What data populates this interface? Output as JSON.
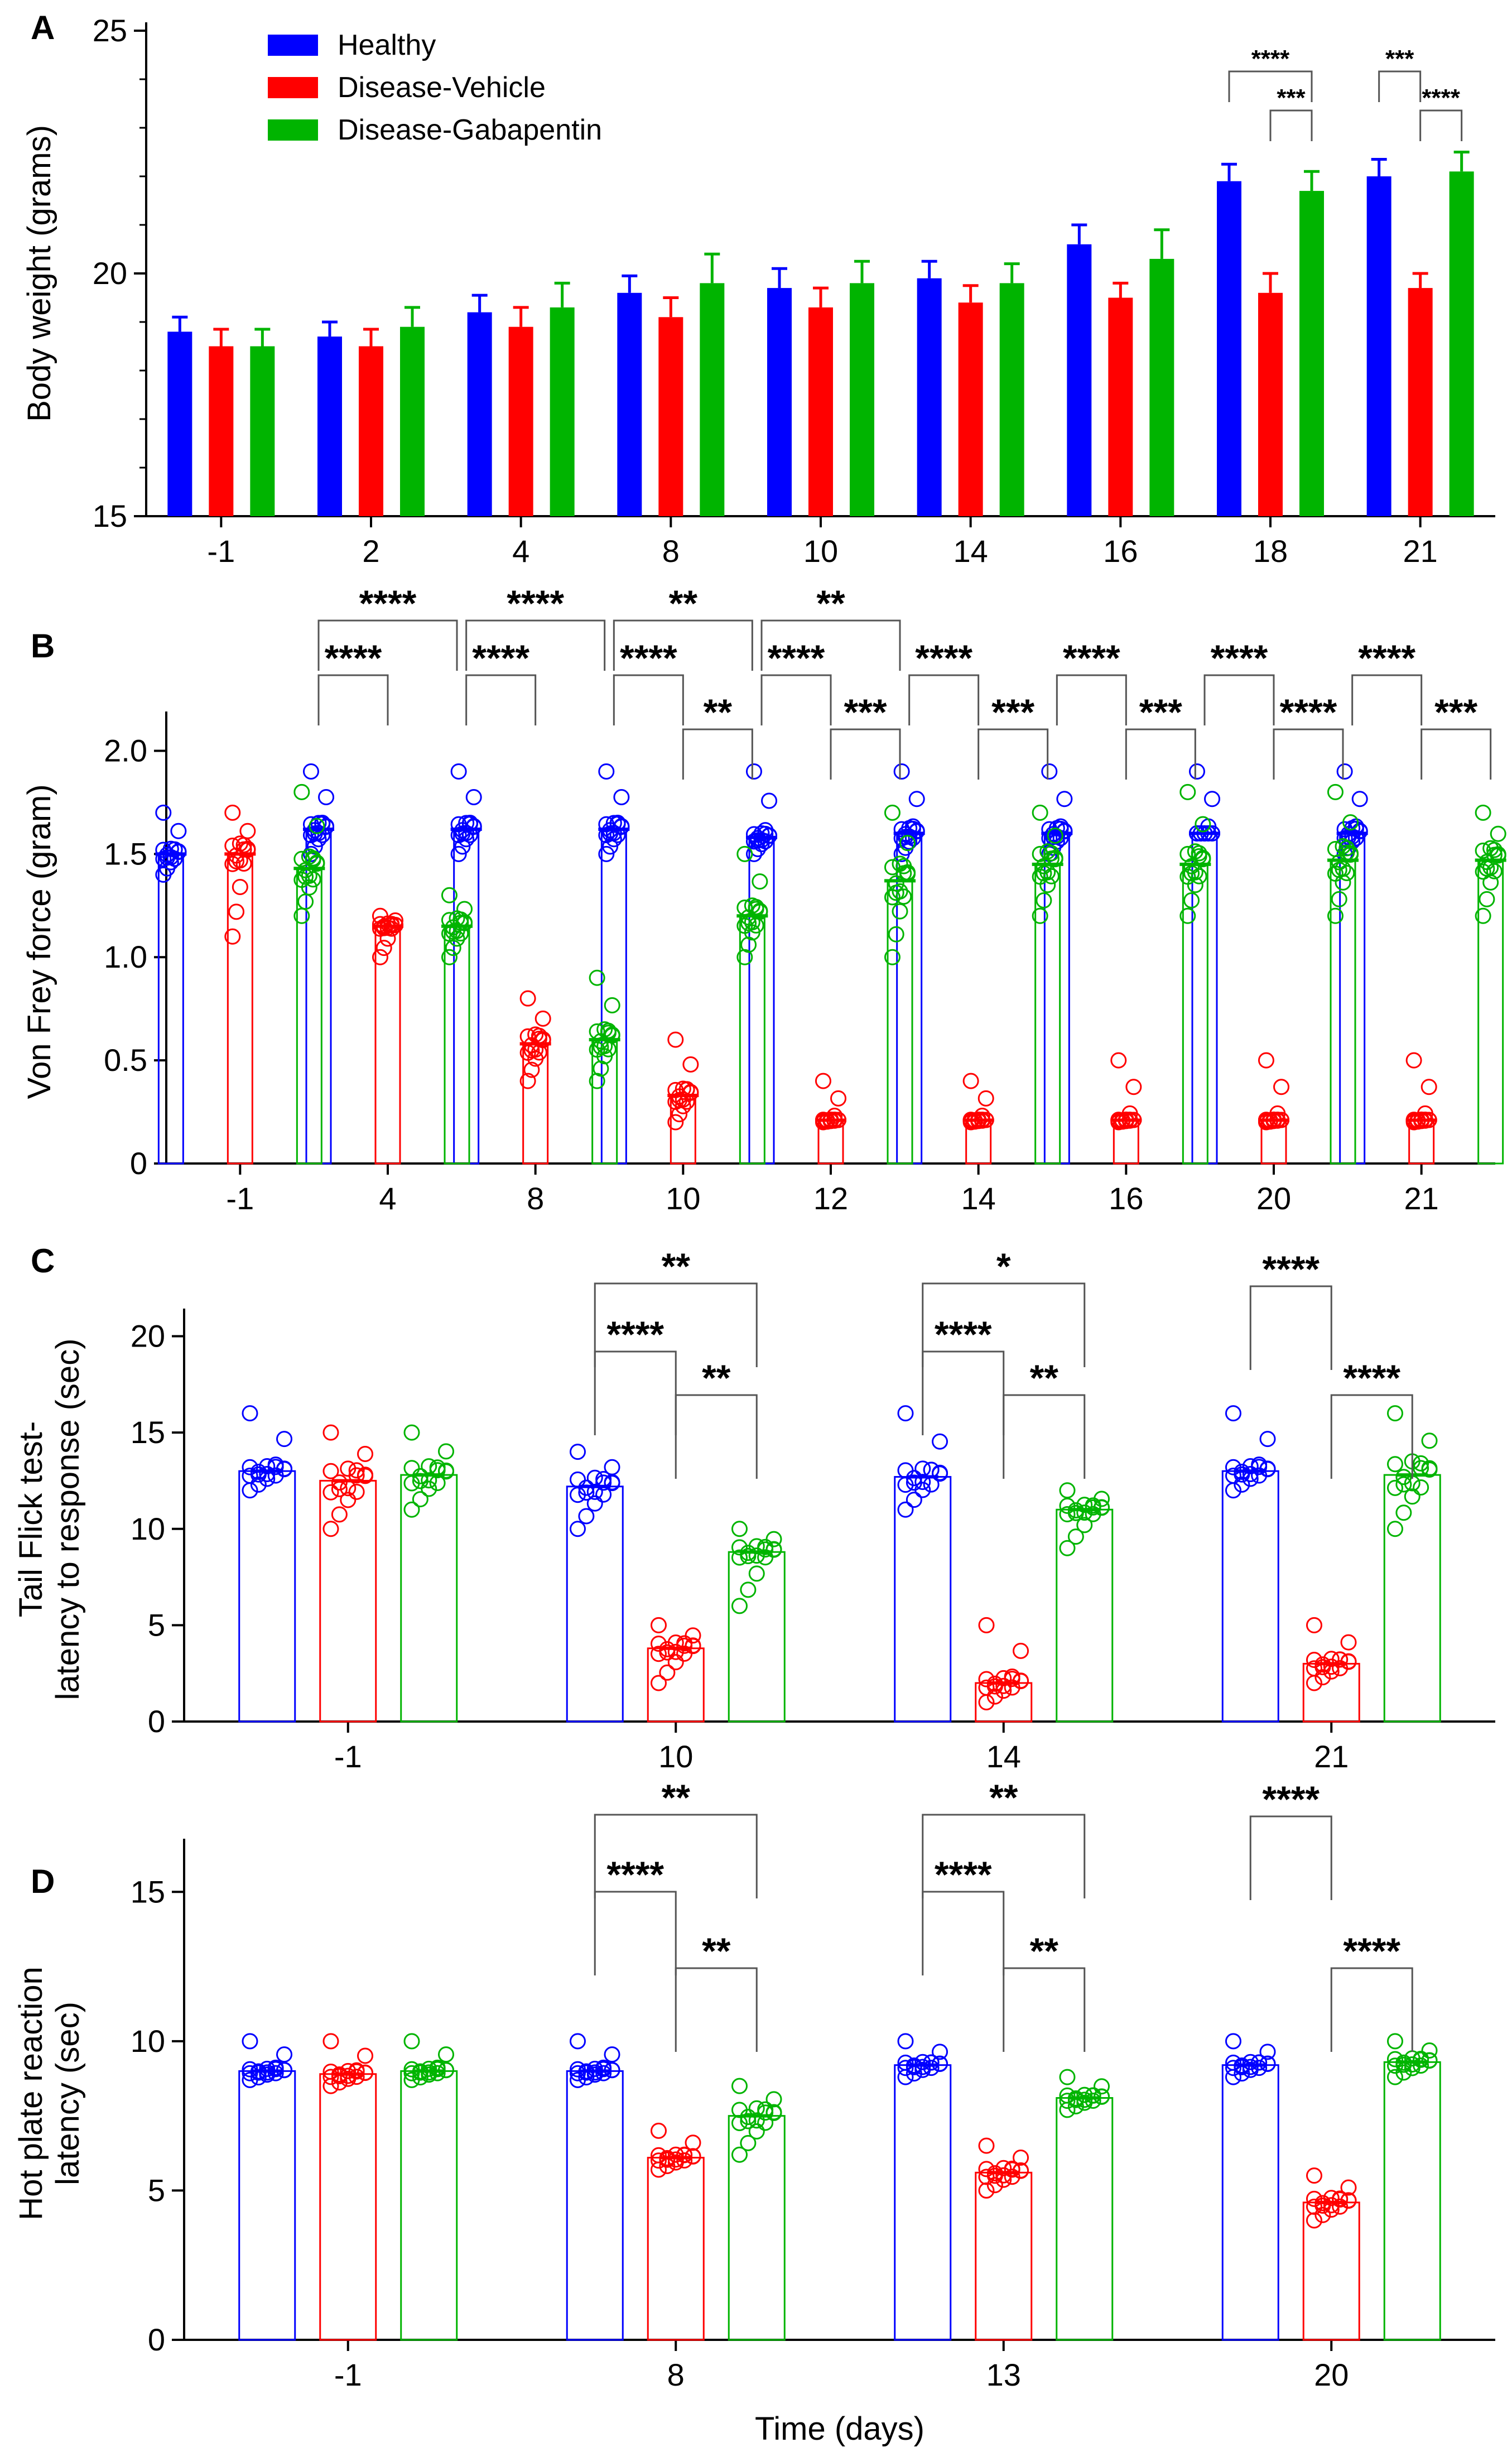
{
  "colors": {
    "healthy": "#0000ff",
    "vehicle": "#ff0000",
    "gabapentin": "#00b400",
    "axis": "#000000"
  },
  "legend": [
    "Healthy",
    "Disease-Vehicle",
    "Disease-Gabapentin"
  ],
  "xlabel": "Time (days)",
  "chart_data": [
    {
      "panel": "A",
      "type": "bar",
      "ylabel": "Body weight (grams)",
      "ylim": [
        15,
        25
      ],
      "yticks": [
        15,
        20,
        25
      ],
      "categories": [
        "-1",
        "2",
        "4",
        "8",
        "10",
        "14",
        "16",
        "18",
        "21"
      ],
      "series": [
        {
          "name": "Healthy",
          "values": [
            18.8,
            18.7,
            19.2,
            19.6,
            19.7,
            19.9,
            20.6,
            21.9,
            22.0
          ],
          "errors": [
            0.3,
            0.3,
            0.35,
            0.35,
            0.4,
            0.35,
            0.4,
            0.35,
            0.35
          ]
        },
        {
          "name": "Disease-Vehicle",
          "values": [
            18.5,
            18.5,
            18.9,
            19.1,
            19.3,
            19.4,
            19.5,
            19.6,
            19.7
          ],
          "errors": [
            0.35,
            0.35,
            0.4,
            0.4,
            0.4,
            0.35,
            0.3,
            0.4,
            0.3
          ]
        },
        {
          "name": "Disease-Gabapentin",
          "values": [
            18.5,
            18.9,
            19.3,
            19.8,
            19.8,
            19.8,
            20.3,
            21.7,
            22.1
          ],
          "errors": [
            0.35,
            0.4,
            0.5,
            0.6,
            0.45,
            0.4,
            0.6,
            0.4,
            0.4
          ]
        }
      ],
      "significance": [
        {
          "cat": 7,
          "from": 0,
          "to": 2,
          "label": "****",
          "level": 2
        },
        {
          "cat": 7,
          "from": 1,
          "to": 2,
          "label": "***",
          "level": 1
        },
        {
          "cat": 8,
          "from": 0,
          "to": 1,
          "label": "***",
          "level": 2
        },
        {
          "cat": 8,
          "from": 1,
          "to": 2,
          "label": "****",
          "level": 1
        }
      ]
    },
    {
      "panel": "B",
      "type": "bar",
      "ylabel": "Von Frey force (gram)",
      "ylim": [
        0,
        2.15
      ],
      "yticks": [
        0,
        0.5,
        1.0,
        1.5,
        2.0
      ],
      "yticklabels": [
        "0",
        "0.5",
        "1.0",
        "1.5",
        "2.0"
      ],
      "categories": [
        "-1",
        "4",
        "8",
        "10",
        "12",
        "14",
        "16",
        "20",
        "21"
      ],
      "series": [
        {
          "name": "Healthy",
          "values": [
            1.5,
            1.62,
            1.62,
            1.62,
            1.58,
            1.6,
            1.6,
            1.6,
            1.6
          ],
          "min": [
            1.4,
            1.5,
            1.5,
            1.5,
            1.5,
            1.5,
            1.5,
            1.6,
            1.5
          ],
          "max": [
            1.7,
            1.9,
            1.9,
            1.9,
            1.9,
            1.9,
            1.9,
            1.9,
            1.9
          ]
        },
        {
          "name": "Disease-Vehicle",
          "values": [
            1.5,
            1.15,
            0.58,
            0.33,
            0.21,
            0.21,
            0.21,
            0.21,
            0.21
          ],
          "min": [
            1.1,
            1.0,
            0.4,
            0.2,
            0.2,
            0.2,
            0.2,
            0.2,
            0.2
          ],
          "max": [
            1.7,
            1.2,
            0.8,
            0.6,
            0.4,
            0.4,
            0.5,
            0.5,
            0.5
          ]
        },
        {
          "name": "Disease-Gabapentin",
          "values": [
            1.43,
            1.15,
            0.6,
            1.2,
            1.37,
            1.45,
            1.45,
            1.47,
            1.47
          ],
          "min": [
            1.2,
            1.0,
            0.4,
            1.0,
            1.0,
            1.2,
            1.2,
            1.2,
            1.2
          ],
          "max": [
            1.8,
            1.3,
            0.9,
            1.5,
            1.7,
            1.7,
            1.8,
            1.8,
            1.7
          ]
        }
      ],
      "significance": [
        {
          "cat": 1,
          "from": 0,
          "to": 2,
          "label": "****",
          "level": 2
        },
        {
          "cat": 1,
          "from": 0,
          "to": 1,
          "label": "****",
          "level": 1
        },
        {
          "cat": 2,
          "from": 0,
          "to": 2,
          "label": "****",
          "level": 2
        },
        {
          "cat": 2,
          "from": 0,
          "to": 1,
          "label": "****",
          "level": 1
        },
        {
          "cat": 3,
          "from": 0,
          "to": 2,
          "label": "**",
          "level": 2
        },
        {
          "cat": 3,
          "from": 0,
          "to": 1,
          "label": "****",
          "level": 1
        },
        {
          "cat": 3,
          "from": 1,
          "to": 2,
          "label": "**",
          "level": 0
        },
        {
          "cat": 4,
          "from": 0,
          "to": 2,
          "label": "**",
          "level": 2
        },
        {
          "cat": 4,
          "from": 0,
          "to": 1,
          "label": "****",
          "level": 1
        },
        {
          "cat": 4,
          "from": 1,
          "to": 2,
          "label": "***",
          "level": 0
        },
        {
          "cat": 5,
          "from": 0,
          "to": 1,
          "label": "****",
          "level": 1
        },
        {
          "cat": 5,
          "from": 1,
          "to": 2,
          "label": "***",
          "level": 0
        },
        {
          "cat": 6,
          "from": 0,
          "to": 1,
          "label": "****",
          "level": 1
        },
        {
          "cat": 6,
          "from": 1,
          "to": 2,
          "label": "***",
          "level": 0
        },
        {
          "cat": 7,
          "from": 0,
          "to": 1,
          "label": "****",
          "level": 1
        },
        {
          "cat": 7,
          "from": 1,
          "to": 2,
          "label": "****",
          "level": 0
        },
        {
          "cat": 8,
          "from": 0,
          "to": 1,
          "label": "****",
          "level": 1
        },
        {
          "cat": 8,
          "from": 1,
          "to": 2,
          "label": "***",
          "level": 0
        }
      ]
    },
    {
      "panel": "C",
      "type": "bar",
      "ylabel": "Tail Flick test-\nlatency to response (sec)",
      "ylim": [
        0,
        21
      ],
      "yticks": [
        0,
        5,
        10,
        15,
        20
      ],
      "categories": [
        "-1",
        "10",
        "14",
        "21"
      ],
      "series": [
        {
          "name": "Healthy",
          "values": [
            13.0,
            12.2,
            12.7,
            13.0
          ],
          "min": [
            12,
            10,
            11,
            12
          ],
          "max": [
            16,
            14,
            16,
            16
          ]
        },
        {
          "name": "Disease-Vehicle",
          "values": [
            12.5,
            3.8,
            2.0,
            3.0
          ],
          "min": [
            10,
            2,
            1,
            2
          ],
          "max": [
            15,
            5,
            5,
            5
          ]
        },
        {
          "name": "Disease-Gabapentin",
          "values": [
            12.8,
            8.8,
            11.0,
            12.8
          ],
          "min": [
            11,
            6,
            9,
            10
          ],
          "max": [
            15,
            10,
            12,
            16
          ]
        }
      ],
      "significance": [
        {
          "cat": 1,
          "from": 0,
          "to": 2,
          "label": "**",
          "level": 2
        },
        {
          "cat": 1,
          "from": 0,
          "to": 1,
          "label": "****",
          "level": 1
        },
        {
          "cat": 1,
          "from": 1,
          "to": 2,
          "label": "**",
          "level": 0
        },
        {
          "cat": 2,
          "from": 0,
          "to": 2,
          "label": "*",
          "level": 2
        },
        {
          "cat": 2,
          "from": 0,
          "to": 1,
          "label": "****",
          "level": 1
        },
        {
          "cat": 2,
          "from": 1,
          "to": 2,
          "label": "**",
          "level": 0
        },
        {
          "cat": 3,
          "from": 0,
          "to": 1,
          "label": "****",
          "level": 2
        },
        {
          "cat": 3,
          "from": 1,
          "to": 2,
          "label": "****",
          "level": 0
        }
      ]
    },
    {
      "panel": "D",
      "type": "bar",
      "ylabel": "Hot plate reaction\nlatency (sec)",
      "ylim": [
        0,
        16.5
      ],
      "yticks": [
        0,
        5,
        10,
        15
      ],
      "categories": [
        "-1",
        "8",
        "13",
        "20"
      ],
      "series": [
        {
          "name": "Healthy",
          "values": [
            9.0,
            9.0,
            9.2,
            9.2
          ],
          "min": [
            8.7,
            8.7,
            8.8,
            8.8
          ],
          "max": [
            10.0,
            10.0,
            10.0,
            10.0
          ]
        },
        {
          "name": "Disease-Vehicle",
          "values": [
            8.9,
            6.1,
            5.6,
            4.6
          ],
          "min": [
            8.5,
            5.7,
            5.0,
            4.0
          ],
          "max": [
            10.0,
            7.0,
            6.5,
            5.5
          ]
        },
        {
          "name": "Disease-Gabapentin",
          "values": [
            9.0,
            7.5,
            8.1,
            9.3
          ],
          "min": [
            8.7,
            6.2,
            7.7,
            8.8
          ],
          "max": [
            10.0,
            8.5,
            8.8,
            10.0
          ]
        }
      ],
      "significance": [
        {
          "cat": 1,
          "from": 0,
          "to": 2,
          "label": "**",
          "level": 2
        },
        {
          "cat": 1,
          "from": 0,
          "to": 1,
          "label": "****",
          "level": 1
        },
        {
          "cat": 1,
          "from": 1,
          "to": 2,
          "label": "**",
          "level": 0
        },
        {
          "cat": 2,
          "from": 0,
          "to": 2,
          "label": "**",
          "level": 2
        },
        {
          "cat": 2,
          "from": 0,
          "to": 1,
          "label": "****",
          "level": 1
        },
        {
          "cat": 2,
          "from": 1,
          "to": 2,
          "label": "**",
          "level": 0
        },
        {
          "cat": 3,
          "from": 0,
          "to": 1,
          "label": "****",
          "level": 2
        },
        {
          "cat": 3,
          "from": 1,
          "to": 2,
          "label": "****",
          "level": 0
        }
      ]
    }
  ]
}
